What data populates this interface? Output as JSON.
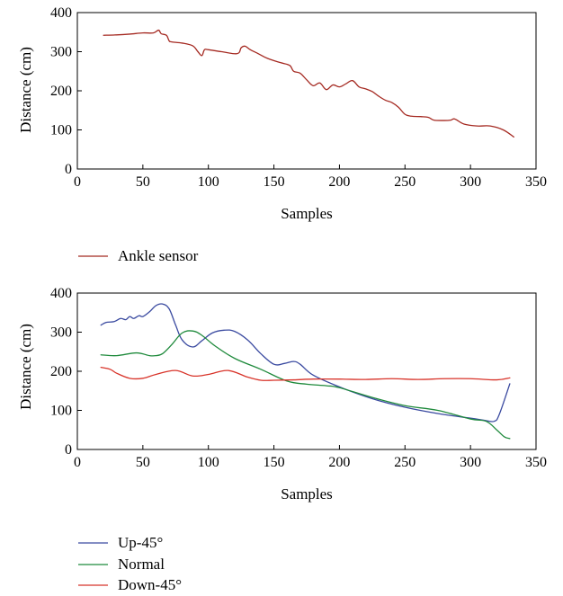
{
  "chart_data": [
    {
      "type": "line",
      "xlabel": "Samples",
      "ylabel": "Distance (cm)",
      "xlim": [
        0,
        350
      ],
      "ylim": [
        0,
        400
      ],
      "xticks": [
        0,
        50,
        100,
        150,
        200,
        250,
        300,
        350
      ],
      "yticks": [
        0,
        100,
        200,
        300,
        400
      ],
      "xtick_labels": [
        "0",
        "50",
        "100",
        "150",
        "200",
        "250",
        "300",
        "350"
      ],
      "ytick_labels": [
        "0",
        "100",
        "200",
        "300",
        "400"
      ],
      "legend_position": "below",
      "series": [
        {
          "name": "Ankle sensor",
          "color": "#a52a22",
          "x": [
            20,
            30,
            40,
            50,
            58,
            62,
            64,
            68,
            70,
            72,
            80,
            88,
            92,
            95,
            97,
            100,
            110,
            122,
            125,
            128,
            132,
            138,
            145,
            155,
            162,
            165,
            170,
            175,
            180,
            185,
            190,
            195,
            200,
            205,
            210,
            215,
            220,
            225,
            230,
            235,
            240,
            245,
            250,
            255,
            262,
            268,
            272,
            280,
            285,
            288,
            295,
            305,
            315,
            325,
            333
          ],
          "y": [
            342,
            343,
            345,
            348,
            348,
            355,
            346,
            342,
            328,
            325,
            322,
            315,
            300,
            290,
            305,
            305,
            300,
            295,
            310,
            314,
            305,
            295,
            283,
            272,
            265,
            250,
            245,
            228,
            213,
            220,
            203,
            215,
            210,
            218,
            226,
            210,
            205,
            198,
            186,
            176,
            170,
            158,
            140,
            135,
            134,
            132,
            125,
            124,
            125,
            128,
            115,
            110,
            110,
            100,
            82
          ]
        }
      ]
    },
    {
      "type": "line",
      "xlabel": "Samples",
      "ylabel": "Distance (cm)",
      "xlim": [
        0,
        350
      ],
      "ylim": [
        0,
        400
      ],
      "xticks": [
        0,
        50,
        100,
        150,
        200,
        250,
        300,
        350
      ],
      "yticks": [
        0,
        100,
        200,
        300,
        400
      ],
      "xtick_labels": [
        "0",
        "50",
        "100",
        "150",
        "200",
        "250",
        "300",
        "350"
      ],
      "ytick_labels": [
        "0",
        "100",
        "200",
        "300",
        "400"
      ],
      "legend_position": "below",
      "series": [
        {
          "name": "Up-45°",
          "color": "#3a4aa0",
          "x": [
            18,
            22,
            28,
            33,
            37,
            40,
            43,
            47,
            50,
            55,
            60,
            65,
            70,
            75,
            80,
            88,
            95,
            103,
            112,
            120,
            130,
            140,
            150,
            158,
            165,
            170,
            180,
            200,
            225,
            250,
            275,
            300,
            310,
            318,
            322,
            330
          ],
          "y": [
            318,
            325,
            327,
            335,
            332,
            340,
            335,
            342,
            340,
            352,
            368,
            372,
            360,
            318,
            280,
            262,
            278,
            298,
            305,
            302,
            280,
            245,
            218,
            220,
            225,
            218,
            190,
            160,
            130,
            108,
            92,
            80,
            75,
            72,
            90,
            168
          ]
        },
        {
          "name": "Normal",
          "color": "#1f8a3c",
          "x": [
            18,
            30,
            45,
            55,
            60,
            65,
            72,
            80,
            88,
            95,
            105,
            120,
            140,
            160,
            175,
            190,
            200,
            225,
            250,
            275,
            300,
            312,
            320,
            326,
            330
          ],
          "y": [
            242,
            240,
            247,
            240,
            240,
            245,
            268,
            298,
            303,
            292,
            265,
            233,
            205,
            175,
            167,
            163,
            158,
            133,
            112,
            100,
            78,
            72,
            50,
            32,
            28
          ]
        },
        {
          "name": "Down-45°",
          "color": "#d8342a",
          "x": [
            18,
            25,
            30,
            40,
            50,
            60,
            75,
            88,
            100,
            115,
            130,
            140,
            150,
            165,
            180,
            200,
            220,
            240,
            260,
            280,
            300,
            320,
            330
          ],
          "y": [
            210,
            205,
            195,
            182,
            182,
            192,
            202,
            188,
            192,
            202,
            185,
            177,
            177,
            178,
            180,
            180,
            179,
            181,
            179,
            181,
            181,
            178,
            183
          ]
        }
      ]
    }
  ]
}
